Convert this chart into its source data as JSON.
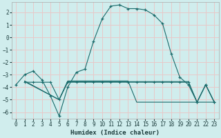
{
  "xlabel": "Humidex (Indice chaleur)",
  "bg_color": "#d0eded",
  "grid_color": "#e8c8c8",
  "line_color": "#1a6b6b",
  "xlim": [
    -0.5,
    23.5
  ],
  "ylim": [
    -6.5,
    2.8
  ],
  "xticks": [
    0,
    1,
    2,
    3,
    4,
    5,
    6,
    7,
    8,
    9,
    10,
    11,
    12,
    13,
    14,
    15,
    16,
    17,
    18,
    19,
    20,
    21,
    22,
    23
  ],
  "yticks": [
    -6,
    -5,
    -4,
    -3,
    -2,
    -1,
    0,
    1,
    2
  ],
  "line1_x": [
    0,
    1,
    2,
    3,
    4,
    5,
    6,
    7,
    8,
    9,
    10,
    11,
    12,
    13,
    14,
    15,
    16,
    17,
    18,
    19,
    20,
    21,
    22,
    23
  ],
  "line1_y": [
    -3.8,
    -3.0,
    -2.7,
    -3.4,
    -4.7,
    -6.3,
    -4.0,
    -2.8,
    -2.55,
    -0.3,
    1.5,
    2.5,
    2.6,
    2.3,
    2.3,
    2.2,
    1.8,
    1.1,
    -1.3,
    -3.2,
    -3.8,
    -5.2,
    -3.8,
    -5.2
  ],
  "line2_x": [
    1,
    2,
    3,
    4,
    5,
    6,
    7,
    8,
    9,
    10,
    11,
    12,
    13,
    14,
    15,
    16,
    17,
    18,
    19,
    20,
    21,
    22,
    23
  ],
  "line2_y": [
    -3.6,
    -3.6,
    -3.6,
    -3.6,
    -5.0,
    -3.6,
    -3.6,
    -3.6,
    -3.6,
    -3.6,
    -3.6,
    -3.6,
    -3.6,
    -3.6,
    -3.6,
    -3.6,
    -3.6,
    -3.6,
    -3.6,
    -3.6,
    -5.2,
    -3.8,
    -5.2
  ],
  "line3_x": [
    1,
    5,
    6,
    7,
    8,
    9,
    10,
    11,
    12,
    13,
    14,
    15,
    16,
    17,
    18,
    19,
    20,
    21,
    22,
    23
  ],
  "line3_y": [
    -3.55,
    -5.0,
    -3.55,
    -3.55,
    -3.55,
    -3.55,
    -3.55,
    -3.55,
    -3.55,
    -3.55,
    -3.55,
    -3.55,
    -3.55,
    -3.55,
    -3.55,
    -3.55,
    -3.55,
    -5.2,
    -3.8,
    -5.2
  ],
  "line4_x": [
    1,
    5,
    6,
    7,
    8,
    9,
    10,
    11,
    12,
    13,
    14,
    15,
    16,
    17,
    18,
    19,
    20,
    23
  ],
  "line4_y": [
    -3.5,
    -5.0,
    -3.5,
    -3.5,
    -3.5,
    -3.5,
    -3.5,
    -3.5,
    -3.5,
    -3.5,
    -5.2,
    -5.2,
    -5.2,
    -5.2,
    -5.2,
    -5.2,
    -5.2,
    -5.2
  ]
}
